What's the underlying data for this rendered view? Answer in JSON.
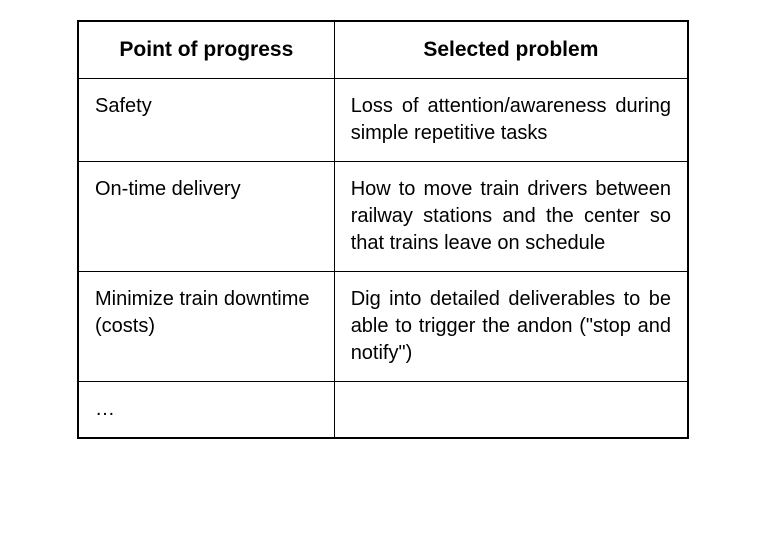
{
  "table": {
    "type": "table",
    "columns": [
      {
        "label": "Point of progress",
        "width_pct": 42,
        "align": "left"
      },
      {
        "label": "Selected problem",
        "width_pct": 58,
        "align": "justify"
      }
    ],
    "rows": [
      {
        "point": "Safety",
        "problem": "Loss of attention/awareness during simple repetitive tasks"
      },
      {
        "point": "On-time delivery",
        "problem": "How to move train drivers between railway stations and the center so that trains leave on schedule"
      },
      {
        "point": "Minimize train downtime (costs)",
        "problem": "Dig into detailed deliverables to be able to trigger the andon (\"stop and notify\")"
      },
      {
        "point": "…",
        "problem": ""
      }
    ],
    "border_color": "#000000",
    "background_color": "#ffffff",
    "header_fontsize": 21,
    "cell_fontsize": 20,
    "header_fontweight": "bold",
    "font_family": "Arial, Helvetica, sans-serif"
  }
}
